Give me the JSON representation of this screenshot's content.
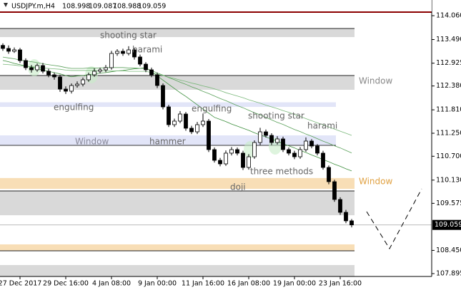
{
  "chart_data": {
    "type": "candlestick",
    "symbol": "USDJPY.m,H4",
    "header_prices": [
      108.998,
      109.087,
      108.988,
      109.059
    ],
    "current_price": 109.059,
    "ylim": [
      107.827,
      114.435
    ],
    "yticks": [
      {
        "value": 114.06,
        "label": "114.060"
      },
      {
        "value": 113.49,
        "label": "113.490"
      },
      112.925,
      {
        "value": 112.38,
        "label": "112.380"
      },
      {
        "value": 111.81,
        "label": "111.810"
      },
      {
        "value": 111.25,
        "label": "111.250"
      },
      {
        "value": 110.7,
        "label": "110.700"
      },
      {
        "value": 110.13,
        "label": "110.130"
      },
      109.575,
      {
        "value": 108.45,
        "label": "108.450"
      },
      107.895
    ],
    "categories": [
      null,
      null,
      null,
      "27 Dec 2017",
      null,
      null,
      null,
      null,
      null,
      null,
      null,
      "29 Dec 16:00",
      null,
      null,
      null,
      null,
      null,
      null,
      null,
      "4 Jan 08:00",
      null,
      null,
      null,
      null,
      null,
      null,
      null,
      "9 Jan 00:00",
      null,
      null,
      null,
      null,
      null,
      null,
      null,
      "11 Jan 16:00",
      null,
      null,
      null,
      null,
      null,
      null,
      null,
      "16 Jan 08:00",
      null,
      null,
      null,
      null,
      null,
      null,
      null,
      "19 Jan 00:00",
      null,
      null,
      null,
      null,
      null,
      null,
      null,
      "23 Jan 16:00",
      null,
      null
    ],
    "open": [
      113.35,
      113.277,
      113.209,
      113.243,
      112.987,
      112.817,
      112.766,
      112.868,
      112.732,
      112.647,
      112.596,
      112.306,
      112.255,
      112.391,
      112.425,
      112.528,
      112.647,
      112.732,
      112.766,
      112.817,
      113.158,
      113.209,
      113.158,
      113.243,
      113.073,
      112.902,
      112.766,
      112.647,
      112.391,
      111.88,
      111.455,
      111.54,
      111.71,
      111.37,
      111.284,
      111.455,
      111.54,
      110.859,
      110.603,
      110.518,
      110.774,
      110.859,
      110.774,
      110.433,
      110.688,
      111.029,
      111.284,
      111.199,
      111.029,
      111.114,
      110.859,
      110.774,
      110.688,
      110.859,
      111.063,
      110.944,
      110.774,
      110.433,
      110.092,
      109.667,
      109.36,
      109.156
    ],
    "high": [
      113.4,
      113.35,
      113.3,
      113.29,
      113.04,
      112.88,
      112.92,
      112.93,
      112.79,
      112.7,
      112.65,
      112.37,
      112.44,
      112.49,
      112.58,
      112.7,
      112.8,
      112.82,
      112.88,
      113.22,
      113.26,
      113.27,
      113.33,
      113.29,
      113.13,
      112.95,
      112.82,
      112.7,
      112.44,
      111.93,
      111.6,
      111.78,
      111.76,
      111.43,
      111.52,
      111.72,
      111.59,
      110.91,
      110.66,
      110.84,
      110.92,
      110.91,
      110.83,
      110.75,
      111.08,
      111.38,
      111.34,
      111.25,
      111.18,
      111.17,
      110.91,
      110.83,
      110.92,
      111.15,
      111.11,
      110.99,
      110.83,
      110.48,
      110.14,
      109.72,
      109.42,
      109.2
    ],
    "low": [
      113.22,
      113.15,
      113.17,
      112.93,
      112.76,
      112.7,
      112.72,
      112.68,
      112.59,
      112.53,
      112.24,
      112.19,
      112.2,
      112.34,
      112.37,
      112.48,
      112.6,
      112.68,
      112.71,
      112.77,
      113.1,
      113.1,
      113.11,
      113.01,
      112.85,
      112.71,
      112.59,
      112.33,
      111.82,
      111.4,
      111.4,
      111.49,
      111.31,
      111.23,
      111.23,
      111.4,
      110.8,
      110.55,
      110.46,
      110.47,
      110.72,
      110.72,
      110.37,
      110.38,
      110.64,
      110.97,
      111.15,
      110.97,
      110.98,
      110.8,
      110.72,
      110.63,
      110.64,
      110.81,
      110.89,
      110.72,
      110.38,
      110.03,
      109.61,
      109.3,
      109.1,
      109.0
    ],
    "close": [
      113.277,
      113.209,
      113.243,
      112.987,
      112.817,
      112.766,
      112.868,
      112.732,
      112.647,
      112.596,
      112.306,
      112.255,
      112.391,
      112.425,
      112.528,
      112.647,
      112.732,
      112.766,
      112.817,
      113.158,
      113.209,
      113.158,
      113.243,
      113.073,
      112.902,
      112.766,
      112.647,
      112.391,
      111.88,
      111.455,
      111.54,
      111.71,
      111.37,
      111.284,
      111.455,
      111.54,
      110.859,
      110.603,
      110.518,
      110.774,
      110.859,
      110.774,
      110.433,
      110.688,
      111.029,
      111.284,
      111.199,
      111.029,
      111.114,
      110.859,
      110.774,
      110.688,
      110.859,
      111.063,
      110.944,
      110.774,
      110.433,
      110.092,
      109.667,
      109.36,
      109.156,
      109.059
    ],
    "moving_averages": [
      {
        "color": "#3d8f3d",
        "values": [
          112.99,
          112.96,
          112.92,
          112.89,
          112.86,
          112.83,
          112.8,
          112.76,
          112.73,
          112.7,
          112.67,
          112.63,
          112.6,
          112.62,
          112.63,
          112.65,
          112.67,
          112.69,
          112.7,
          112.72,
          112.74,
          112.75,
          112.77,
          112.79,
          112.8,
          112.82,
          112.72,
          112.62,
          112.52,
          112.42,
          112.32,
          112.22,
          112.13,
          112.03,
          111.93,
          111.83,
          111.73,
          111.63,
          111.58,
          111.53,
          111.47,
          111.42,
          111.37,
          111.32,
          111.26,
          111.21,
          111.16,
          111.11,
          111.06,
          111.0,
          110.95,
          110.9,
          110.84,
          110.79,
          110.73,
          110.68,
          110.62,
          110.57,
          110.51,
          110.46,
          110.4,
          110.35
        ]
      },
      {
        "color": "#5aa05a",
        "values": [
          113.07,
          113.05,
          113.03,
          113.0,
          112.98,
          112.96,
          112.94,
          112.91,
          112.89,
          112.87,
          112.85,
          112.82,
          112.8,
          112.8,
          112.8,
          112.81,
          112.81,
          112.81,
          112.82,
          112.82,
          112.82,
          112.82,
          112.81,
          112.81,
          112.8,
          112.8,
          112.75,
          112.69,
          112.64,
          112.58,
          112.53,
          112.47,
          112.42,
          112.36,
          112.31,
          112.25,
          112.2,
          112.14,
          112.08,
          112.03,
          111.97,
          111.91,
          111.86,
          111.8,
          111.74,
          111.69,
          111.63,
          111.57,
          111.51,
          111.46,
          111.4,
          111.34,
          111.29,
          111.23,
          111.18,
          111.12,
          111.06,
          111.01,
          110.95,
          110.9,
          110.84,
          110.78
        ]
      },
      {
        "color": "#7ab87a",
        "values": [
          112.9,
          112.89,
          112.88,
          112.86,
          112.85,
          112.84,
          112.83,
          112.81,
          112.8,
          112.79,
          112.78,
          112.76,
          112.75,
          112.75,
          112.75,
          112.75,
          112.75,
          112.74,
          112.74,
          112.74,
          112.74,
          112.74,
          112.73,
          112.73,
          112.73,
          112.73,
          112.7,
          112.66,
          112.63,
          112.59,
          112.56,
          112.52,
          112.49,
          112.45,
          112.42,
          112.38,
          112.35,
          112.31,
          112.27,
          112.22,
          112.18,
          112.14,
          112.1,
          112.05,
          112.01,
          111.97,
          111.92,
          111.88,
          111.84,
          111.79,
          111.75,
          111.7,
          111.65,
          111.6,
          111.55,
          111.5,
          111.45,
          111.4,
          111.35,
          111.3,
          111.25,
          111.2
        ]
      }
    ],
    "zones": [
      {
        "from": 113.754,
        "to": 113.549,
        "color": "#d9d9d9"
      },
      {
        "from": 112.63,
        "to": 112.289,
        "color": "#d9d9d9"
      },
      {
        "from": 111.99,
        "to": 111.88,
        "color": "#e2e5f8"
      },
      {
        "from": 111.2,
        "to": 110.96,
        "color": "#e2e5f8"
      },
      {
        "from": 110.18,
        "to": 109.92,
        "color": "#f8deb6"
      },
      {
        "from": 109.87,
        "to": 109.29,
        "color": "#d9d9d9"
      },
      {
        "from": 108.594,
        "to": 108.44,
        "color": "#f8deb6"
      },
      {
        "from": 108.1,
        "to": 107.83,
        "color": "#d9d9d9"
      }
    ],
    "levels": [
      {
        "value": 114.145,
        "color": "#8b0000"
      },
      {
        "value": 113.754,
        "color": "#222"
      },
      {
        "value": 112.63,
        "color": "#222"
      },
      {
        "value": 110.96,
        "color": "#333"
      },
      {
        "value": 109.87,
        "color": "#222"
      },
      {
        "value": 108.44,
        "color": "#222"
      }
    ],
    "annotations": [
      "shooting star",
      "harami",
      "engulfing",
      "engulfing",
      "shooting star",
      "harami",
      "Window",
      "hammer",
      "three methods",
      "doji",
      "Window",
      "Window"
    ],
    "bull_color": "#ffffff",
    "bear_color": "#000000"
  }
}
